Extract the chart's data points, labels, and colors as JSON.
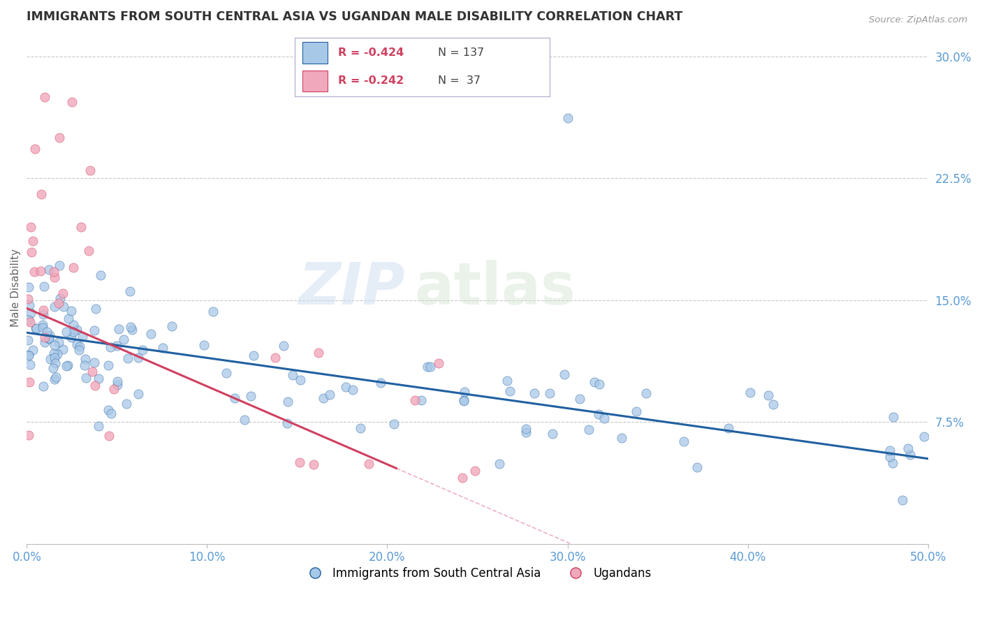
{
  "title": "IMMIGRANTS FROM SOUTH CENTRAL ASIA VS UGANDAN MALE DISABILITY CORRELATION CHART",
  "source": "Source: ZipAtlas.com",
  "ylabel": "Male Disability",
  "x_min": 0.0,
  "x_max": 0.5,
  "y_min": 0.0,
  "y_max": 0.315,
  "yticks": [
    0.075,
    0.15,
    0.225,
    0.3
  ],
  "ytick_labels": [
    "7.5%",
    "15.0%",
    "22.5%",
    "30.0%"
  ],
  "xticks": [
    0.0,
    0.1,
    0.2,
    0.3,
    0.4,
    0.5
  ],
  "xtick_labels": [
    "0.0%",
    "10.0%",
    "20.0%",
    "30.0%",
    "40.0%",
    "50.0%"
  ],
  "blue_color": "#a8c8e8",
  "pink_color": "#f0a8bc",
  "blue_line_color": "#2060a0",
  "pink_line_color": "#d04060",
  "legend1_label": "Immigrants from South Central Asia",
  "legend2_label": "Ugandans",
  "watermark_zip": "ZIP",
  "watermark_atlas": "atlas",
  "blue_r": -0.424,
  "blue_n": 137,
  "pink_r": -0.242,
  "pink_n": 37,
  "blue_intercept": 0.13,
  "blue_slope": -0.155,
  "pink_intercept": 0.145,
  "pink_slope": -0.48,
  "pink_line_end_x": 0.205,
  "title_color": "#333333",
  "axis_label_color": "#5b9bd5",
  "ylabel_color": "#666666",
  "background_color": "#ffffff",
  "grid_color": "#c8c8c8",
  "legend_box_color": "#e8e8f8",
  "legend_border_color": "#aaaacc"
}
